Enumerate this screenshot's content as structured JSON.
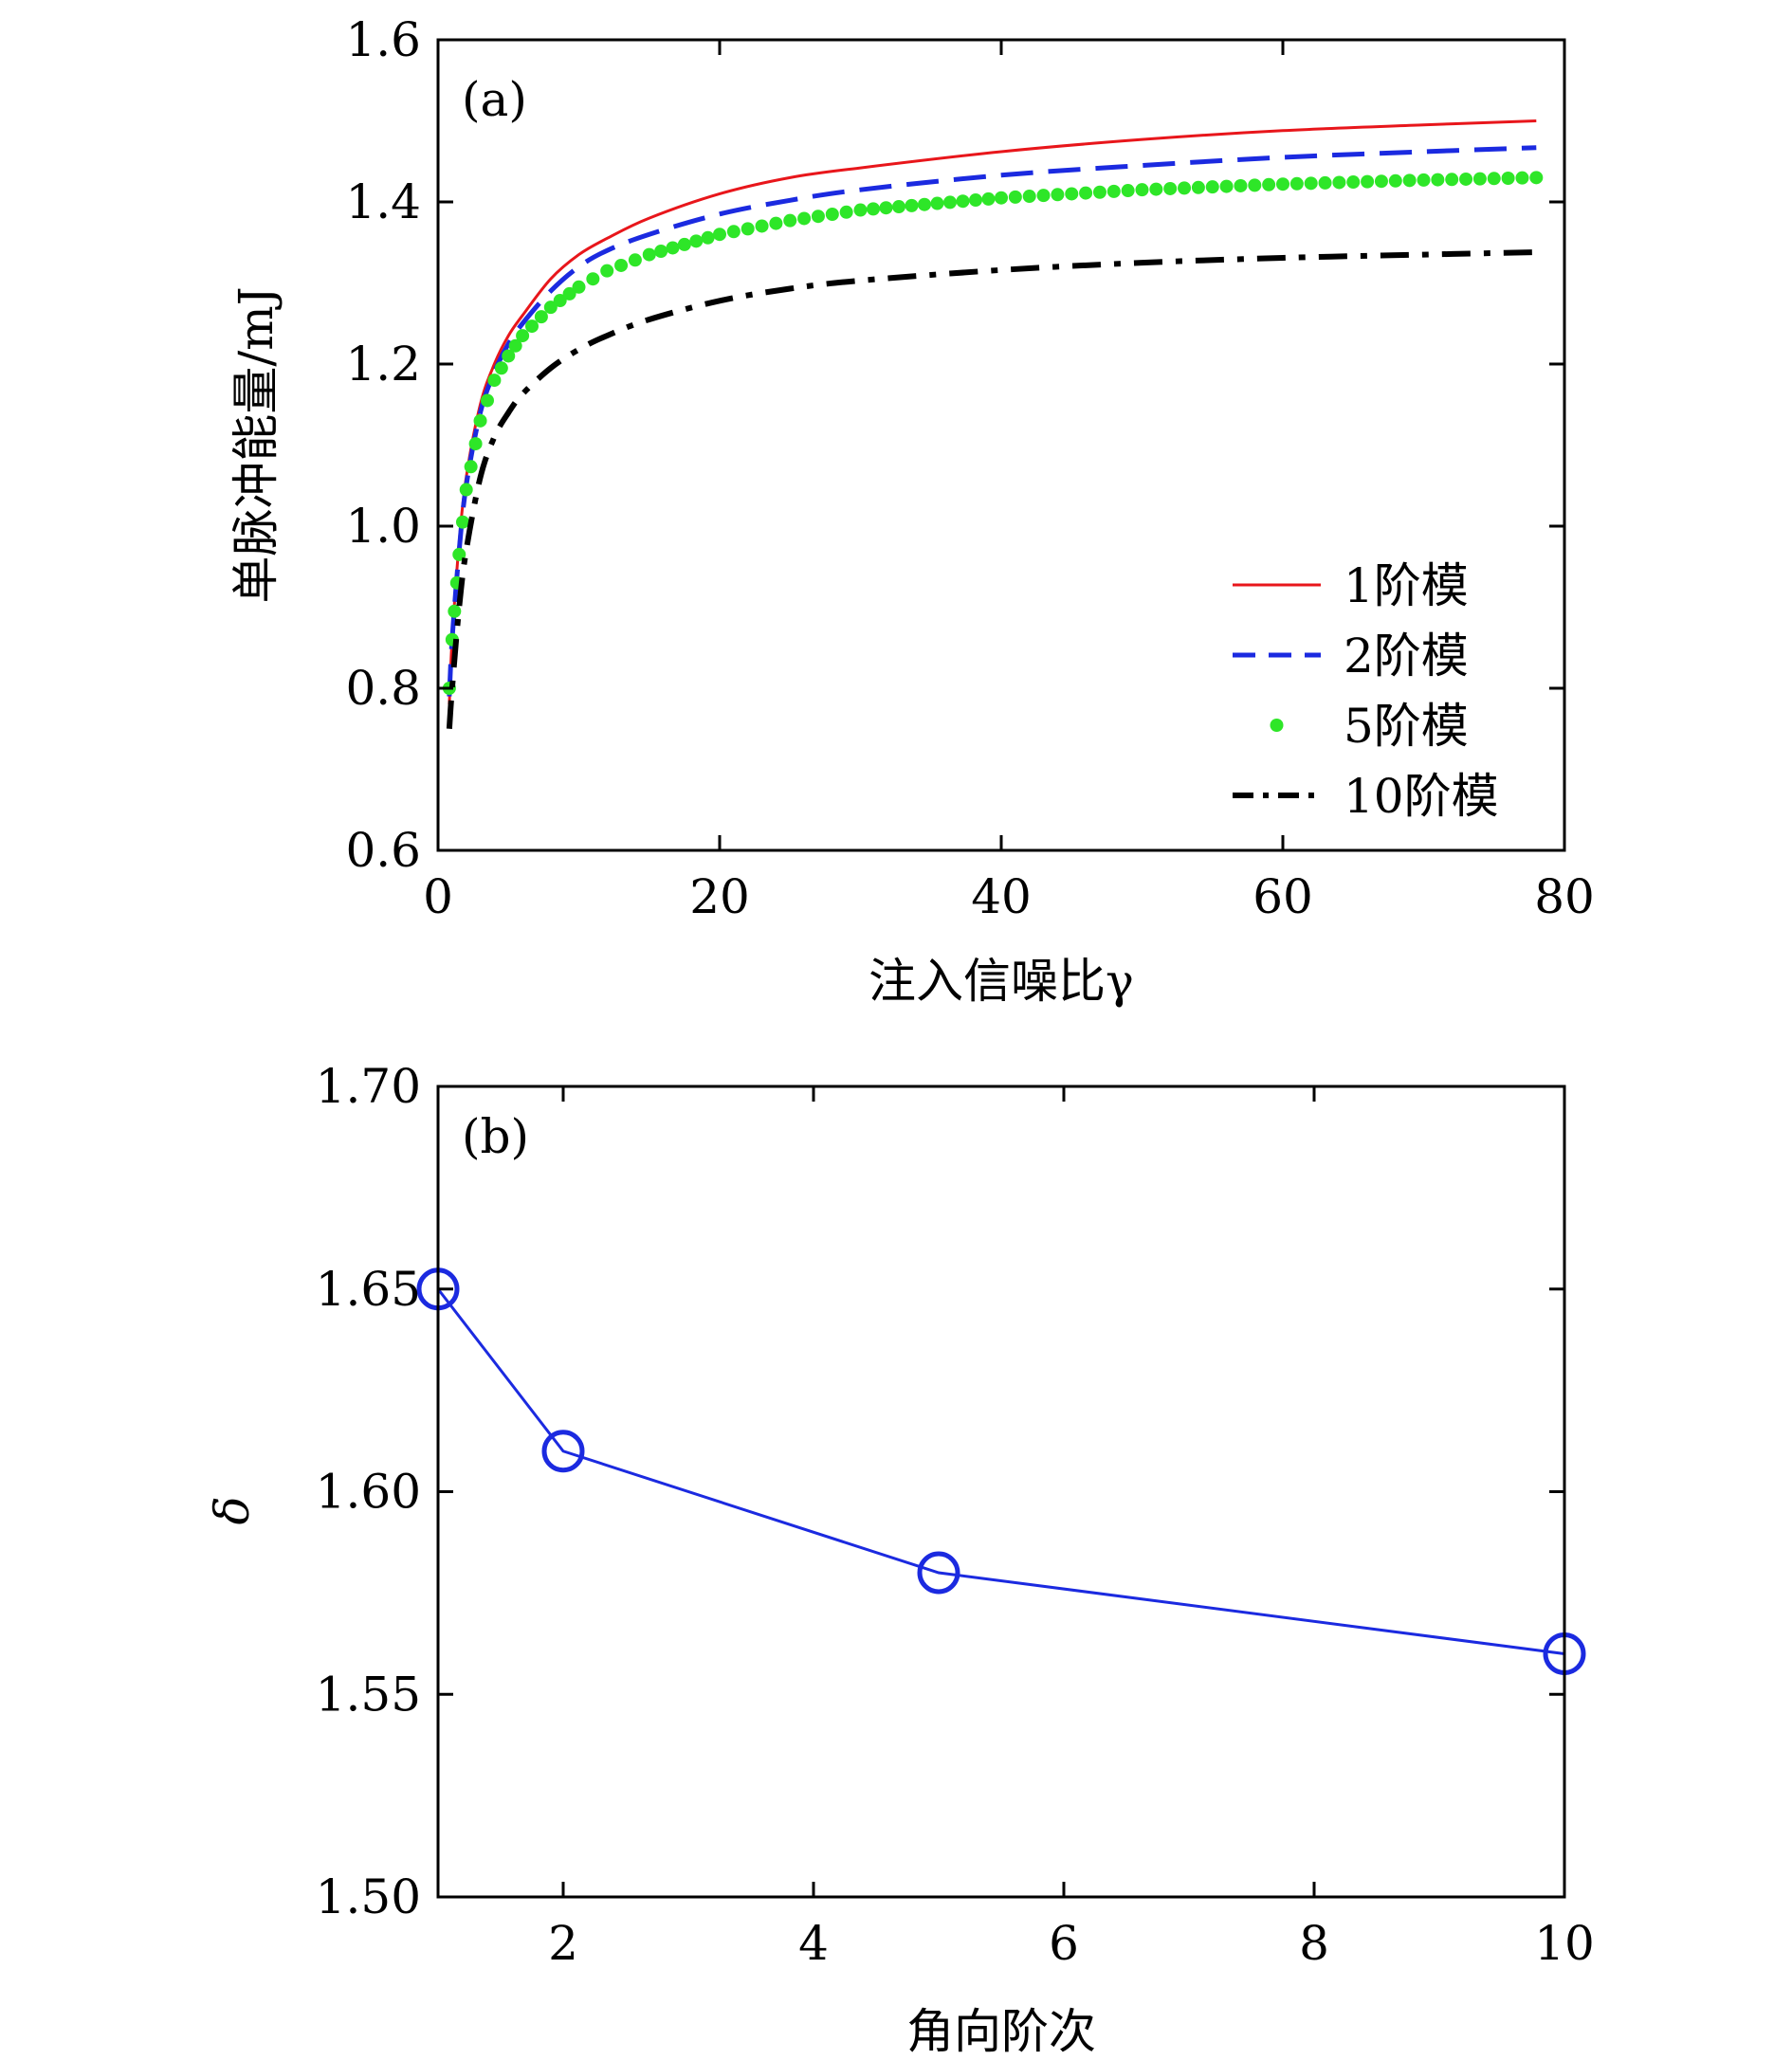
{
  "chart_data": [
    {
      "type": "line",
      "panel_label": "(a)",
      "xlabel": "注入信噪比γ",
      "ylabel": "单脉冲能量/mJ",
      "xlim": [
        0,
        80
      ],
      "ylim": [
        0.6,
        1.6
      ],
      "xticks": [
        0,
        20,
        40,
        60,
        80
      ],
      "yticks": [
        0.6,
        0.8,
        1.0,
        1.2,
        1.4,
        1.6
      ],
      "xtick_labels": [
        "0",
        "20",
        "40",
        "60",
        "80"
      ],
      "ytick_labels": [
        "0.6",
        "0.8",
        "1.0",
        "1.2",
        "1.4",
        "1.6"
      ],
      "legend_position": "bottom-right",
      "series": [
        {
          "name": "1阶模",
          "style": "solid",
          "color": "#e8161b",
          "x": [
            0.8,
            1,
            1.5,
            2,
            3,
            4,
            5,
            6,
            8,
            10,
            12,
            15,
            20,
            25,
            30,
            40,
            50,
            60,
            70,
            78
          ],
          "y": [
            0.78,
            0.86,
            0.98,
            1.06,
            1.15,
            1.2,
            1.235,
            1.26,
            1.305,
            1.335,
            1.355,
            1.38,
            1.41,
            1.43,
            1.442,
            1.462,
            1.477,
            1.488,
            1.495,
            1.5
          ]
        },
        {
          "name": "2阶模",
          "style": "dashed",
          "color": "#1b2ae0",
          "x": [
            0.8,
            1,
            1.5,
            2,
            3,
            4,
            5,
            6,
            8,
            10,
            12,
            15,
            20,
            25,
            30,
            40,
            50,
            60,
            70,
            78
          ],
          "y": [
            0.79,
            0.86,
            0.97,
            1.05,
            1.14,
            1.19,
            1.225,
            1.25,
            1.29,
            1.32,
            1.34,
            1.36,
            1.385,
            1.402,
            1.415,
            1.433,
            1.445,
            1.455,
            1.462,
            1.467
          ]
        },
        {
          "name": "5阶模",
          "style": "dots",
          "color": "#2ee628",
          "x": [
            0.8,
            1,
            1.5,
            2,
            3,
            4,
            5,
            6,
            8,
            10,
            12,
            15,
            20,
            25,
            30,
            40,
            50,
            60,
            70,
            78
          ],
          "y": [
            0.8,
            0.86,
            0.965,
            1.045,
            1.13,
            1.18,
            1.21,
            1.235,
            1.27,
            1.295,
            1.315,
            1.335,
            1.36,
            1.377,
            1.39,
            1.405,
            1.415,
            1.422,
            1.427,
            1.43
          ]
        },
        {
          "name": "10阶模",
          "style": "dashdot",
          "color": "#000000",
          "x": [
            0.8,
            1,
            1.5,
            2,
            3,
            4,
            5,
            6,
            8,
            10,
            12,
            15,
            20,
            25,
            30,
            40,
            50,
            60,
            70,
            78
          ],
          "y": [
            0.75,
            0.8,
            0.9,
            0.97,
            1.06,
            1.11,
            1.14,
            1.163,
            1.195,
            1.218,
            1.235,
            1.255,
            1.278,
            1.293,
            1.303,
            1.316,
            1.325,
            1.331,
            1.335,
            1.338
          ]
        }
      ]
    },
    {
      "type": "line",
      "panel_label": "(b)",
      "xlabel": "角向阶次",
      "ylabel": "δ",
      "xlim": [
        1,
        10
      ],
      "ylim": [
        1.5,
        1.7
      ],
      "xticks": [
        2,
        4,
        6,
        8,
        10
      ],
      "yticks": [
        1.5,
        1.55,
        1.6,
        1.65,
        1.7
      ],
      "xtick_labels": [
        "2",
        "4",
        "6",
        "8",
        "10"
      ],
      "ytick_labels": [
        "1.50",
        "1.55",
        "1.60",
        "1.65",
        "1.70"
      ],
      "series": [
        {
          "name": "δ",
          "style": "solid-circle-markers",
          "color": "#1b2ae0",
          "x": [
            1,
            2,
            5,
            10
          ],
          "y": [
            1.65,
            1.61,
            1.58,
            1.56
          ]
        }
      ]
    }
  ]
}
